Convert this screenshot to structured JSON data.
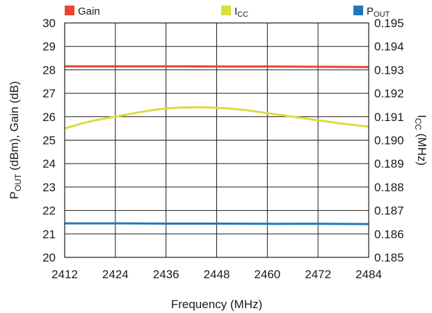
{
  "chart_data": {
    "type": "line",
    "title": "",
    "xlabel": "Frequency (MHz)",
    "ylabel_left": {
      "main": "P",
      "sub": "OUT",
      "rest": " (dBm), Gain (dB)"
    },
    "ylabel_right": {
      "main": "I",
      "sub": "CC",
      "rest": " (MHz)"
    },
    "xlim": [
      2412,
      2484
    ],
    "ylim_left": [
      20,
      30
    ],
    "ylim_right": [
      0.185,
      0.195
    ],
    "x_ticks": [
      2412,
      2424,
      2436,
      2448,
      2460,
      2472,
      2484
    ],
    "y_left_ticks": [
      20,
      21,
      22,
      23,
      24,
      25,
      26,
      27,
      28,
      29,
      30
    ],
    "y_right_ticks": [
      "0.185",
      "0.186",
      "0.187",
      "0.188",
      "0.189",
      "0.190",
      "0.191",
      "0.192",
      "0.193",
      "0.194",
      "0.195"
    ],
    "grid": true,
    "legend_position": "top",
    "series": [
      {
        "name": "Gain",
        "name_main": "Gain",
        "name_sub": "",
        "axis": "left",
        "color": "#e8452c",
        "x": [
          2412,
          2424,
          2436,
          2448,
          2460,
          2472,
          2484
        ],
        "y": [
          28.15,
          28.15,
          28.15,
          28.14,
          28.14,
          28.13,
          28.12
        ]
      },
      {
        "name": "ICC",
        "name_main": "I",
        "name_sub": "CC",
        "axis": "right",
        "color": "#d8de3a",
        "x": [
          2412,
          2418,
          2424,
          2430,
          2436,
          2442,
          2448,
          2454,
          2460,
          2466,
          2472,
          2478,
          2484
        ],
        "y": [
          0.1905,
          0.1908,
          0.191,
          0.1912,
          0.19135,
          0.1914,
          0.19138,
          0.1913,
          0.19115,
          0.191,
          0.19085,
          0.1907,
          0.19058
        ]
      },
      {
        "name": "POUT",
        "name_main": "P",
        "name_sub": "OUT",
        "axis": "left",
        "color": "#1f77b9",
        "x": [
          2412,
          2424,
          2436,
          2448,
          2460,
          2472,
          2484
        ],
        "y": [
          21.45,
          21.45,
          21.44,
          21.44,
          21.43,
          21.43,
          21.42
        ]
      }
    ]
  }
}
